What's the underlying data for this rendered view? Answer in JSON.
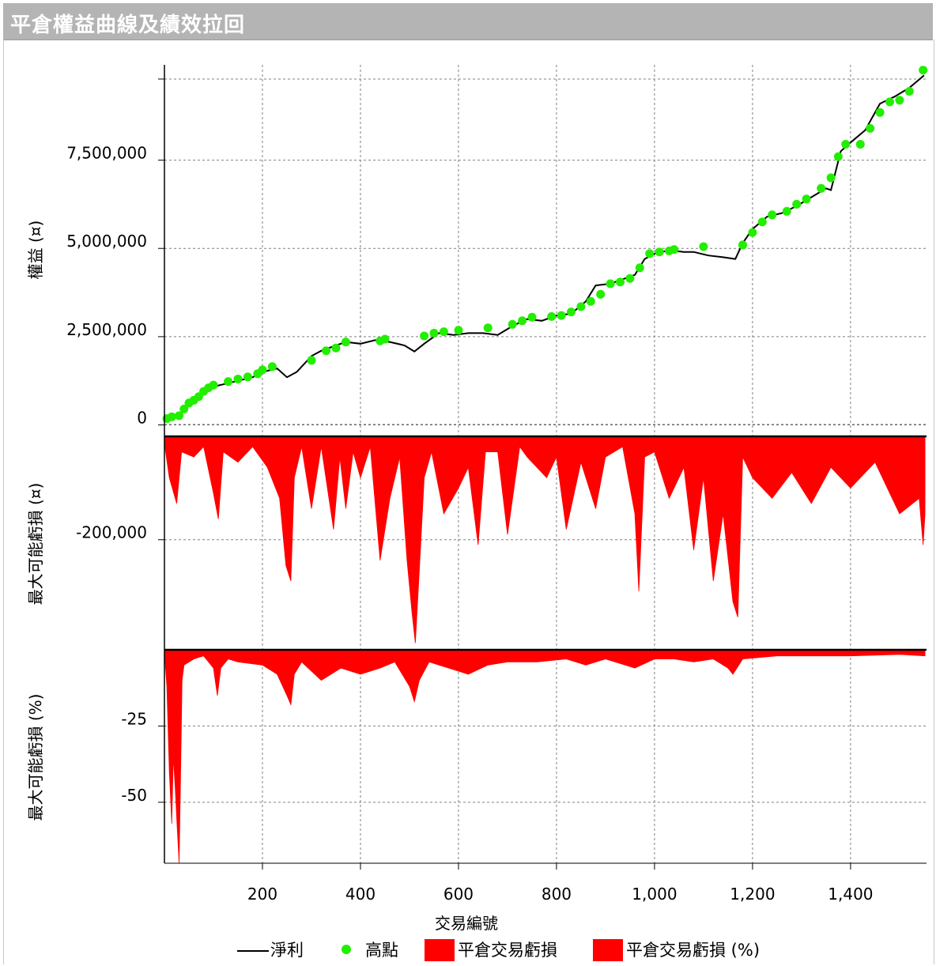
{
  "window": {
    "title": "平倉權益曲線及績效拉回"
  },
  "colors": {
    "equity_line": "#000000",
    "highs": "#22ee00",
    "drawdown": "#ff0000",
    "grid": "#808080"
  },
  "chart_data": [
    {
      "type": "line",
      "panel": "equity",
      "ylabel": "權益 (¤)",
      "ylim": [
        -100000,
        10200000
      ],
      "yticks": [
        0,
        2500000,
        5000000,
        7500000
      ],
      "ytick_labels": [
        "0",
        "2,500,000",
        "5,000,000",
        "7,500,000"
      ],
      "grid": true,
      "series": [
        {
          "name": "淨利",
          "x": [
            1,
            30,
            60,
            90,
            120,
            150,
            180,
            200,
            230,
            250,
            270,
            300,
            320,
            350,
            370,
            400,
            430,
            460,
            490,
            510,
            530,
            560,
            590,
            620,
            650,
            680,
            710,
            740,
            770,
            800,
            830,
            860,
            880,
            910,
            940,
            960,
            980,
            1000,
            1030,
            1060,
            1080,
            1110,
            1140,
            1165,
            1180,
            1200,
            1230,
            1260,
            1290,
            1320,
            1350,
            1360,
            1380,
            1400,
            1430,
            1460,
            1490,
            1520,
            1550
          ],
          "values": [
            150000,
            250000,
            750000,
            1050000,
            1150000,
            1250000,
            1350000,
            1500000,
            1600000,
            1350000,
            1500000,
            1950000,
            2100000,
            2250000,
            2350000,
            2300000,
            2400000,
            2350000,
            2250000,
            2080000,
            2300000,
            2600000,
            2550000,
            2600000,
            2600000,
            2550000,
            2800000,
            3000000,
            2950000,
            3100000,
            3150000,
            3500000,
            3950000,
            4000000,
            4150000,
            4250000,
            4700000,
            4850000,
            4950000,
            4900000,
            4900000,
            4800000,
            4750000,
            4700000,
            5150000,
            5550000,
            5900000,
            6000000,
            6200000,
            6450000,
            6700000,
            6650000,
            7750000,
            8000000,
            8350000,
            9100000,
            9300000,
            9550000,
            9900000
          ]
        },
        {
          "name": "高點",
          "x": [
            5,
            15,
            30,
            40,
            50,
            60,
            70,
            80,
            90,
            100,
            130,
            150,
            170,
            190,
            200,
            220,
            300,
            330,
            350,
            370,
            440,
            450,
            530,
            550,
            570,
            600,
            660,
            710,
            730,
            750,
            790,
            810,
            830,
            850,
            870,
            890,
            910,
            930,
            950,
            970,
            990,
            1010,
            1030,
            1040,
            1100,
            1180,
            1200,
            1220,
            1240,
            1270,
            1290,
            1310,
            1340,
            1360,
            1375,
            1390,
            1420,
            1440,
            1460,
            1480,
            1500,
            1520,
            1548
          ],
          "values": [
            180000,
            230000,
            260000,
            450000,
            620000,
            700000,
            800000,
            950000,
            1050000,
            1130000,
            1230000,
            1300000,
            1360000,
            1450000,
            1560000,
            1650000,
            1830000,
            2100000,
            2180000,
            2350000,
            2380000,
            2430000,
            2520000,
            2600000,
            2640000,
            2680000,
            2750000,
            2850000,
            2950000,
            3050000,
            3070000,
            3100000,
            3200000,
            3350000,
            3500000,
            3700000,
            4000000,
            4050000,
            4150000,
            4450000,
            4850000,
            4900000,
            4930000,
            4970000,
            5050000,
            5100000,
            5450000,
            5750000,
            5950000,
            6050000,
            6250000,
            6400000,
            6700000,
            7000000,
            7600000,
            7950000,
            7950000,
            8400000,
            8850000,
            9150000,
            9200000,
            9450000,
            10050000
          ]
        }
      ]
    },
    {
      "type": "area",
      "panel": "drawdown_amount",
      "ylabel": "最大可能虧損 (¤)",
      "ylim": [
        -410000,
        0
      ],
      "yticks": [
        -200000
      ],
      "ytick_labels": [
        "-200,000"
      ],
      "grid": true,
      "series": [
        {
          "name": "平倉交易虧損",
          "x": [
            1,
            10,
            25,
            35,
            60,
            80,
            100,
            110,
            120,
            150,
            180,
            210,
            235,
            248,
            258,
            265,
            280,
            300,
            320,
            345,
            358,
            370,
            385,
            400,
            420,
            440,
            460,
            480,
            495,
            505,
            512,
            520,
            530,
            545,
            570,
            600,
            620,
            640,
            655,
            680,
            700,
            725,
            740,
            780,
            800,
            820,
            850,
            880,
            900,
            935,
            960,
            968,
            980,
            1000,
            1030,
            1060,
            1080,
            1100,
            1120,
            1140,
            1160,
            1170,
            1180,
            1200,
            1240,
            1280,
            1320,
            1360,
            1400,
            1450,
            1500,
            1540,
            1548,
            1552
          ],
          "values": [
            -20000,
            -80000,
            -130000,
            -30000,
            -40000,
            -20000,
            -110000,
            -160000,
            -30000,
            -50000,
            -20000,
            -60000,
            -120000,
            -250000,
            -280000,
            -80000,
            -20000,
            -140000,
            -20000,
            -180000,
            -40000,
            -140000,
            -30000,
            -80000,
            -20000,
            -240000,
            -120000,
            -40000,
            -240000,
            -340000,
            -400000,
            -260000,
            -80000,
            -30000,
            -150000,
            -100000,
            -60000,
            -210000,
            -30000,
            -30000,
            -190000,
            -20000,
            -40000,
            -80000,
            -40000,
            -180000,
            -50000,
            -140000,
            -40000,
            -20000,
            -150000,
            -300000,
            -40000,
            -30000,
            -120000,
            -60000,
            -220000,
            -80000,
            -280000,
            -150000,
            -320000,
            -350000,
            -40000,
            -80000,
            -120000,
            -70000,
            -130000,
            -60000,
            -100000,
            -50000,
            -150000,
            -120000,
            -210000,
            -150000
          ]
        }
      ]
    },
    {
      "type": "area",
      "panel": "drawdown_percent",
      "ylabel": "最大可能虧損 (%)",
      "xlabel": "交易編號",
      "ylim": [
        -70,
        0
      ],
      "yticks": [
        -25,
        -50
      ],
      "ytick_labels": [
        "-25",
        "-50"
      ],
      "xlim": [
        0,
        1555
      ],
      "xticks": [
        200,
        400,
        600,
        800,
        1000,
        1200,
        1400
      ],
      "xtick_labels": [
        "200",
        "400",
        "600",
        "800",
        "1,000",
        "1,200",
        "1,400"
      ],
      "grid": true,
      "series": [
        {
          "name": "平倉交易虧損 (%)",
          "x": [
            1,
            5,
            10,
            15,
            18,
            22,
            26,
            30,
            33,
            36,
            40,
            60,
            80,
            100,
            108,
            115,
            130,
            150,
            200,
            230,
            250,
            258,
            265,
            280,
            320,
            360,
            400,
            440,
            470,
            500,
            510,
            520,
            540,
            580,
            620,
            660,
            700,
            760,
            820,
            860,
            900,
            960,
            1000,
            1040,
            1080,
            1120,
            1150,
            1160,
            1180,
            1250,
            1300,
            1400,
            1500,
            1552
          ],
          "values": [
            -3,
            -12,
            -40,
            -57,
            -35,
            -45,
            -58,
            -70,
            -40,
            -10,
            -5,
            -3,
            -2,
            -6,
            -15,
            -6,
            -3,
            -4,
            -5,
            -8,
            -15,
            -18,
            -8,
            -4,
            -10,
            -6,
            -8,
            -6,
            -4,
            -12,
            -17,
            -10,
            -4,
            -6,
            -8,
            -5,
            -4,
            -4,
            -3,
            -5,
            -3,
            -6,
            -3,
            -3,
            -4,
            -3,
            -6,
            -8,
            -3,
            -2,
            -2,
            -2,
            -1.5,
            -2
          ]
        }
      ]
    }
  ],
  "legend": {
    "items": [
      {
        "label": "淨利",
        "type": "line"
      },
      {
        "label": "高點",
        "type": "dot"
      },
      {
        "label": "平倉交易虧損",
        "type": "box"
      },
      {
        "label": "平倉交易虧損 (%)",
        "type": "box"
      }
    ]
  }
}
